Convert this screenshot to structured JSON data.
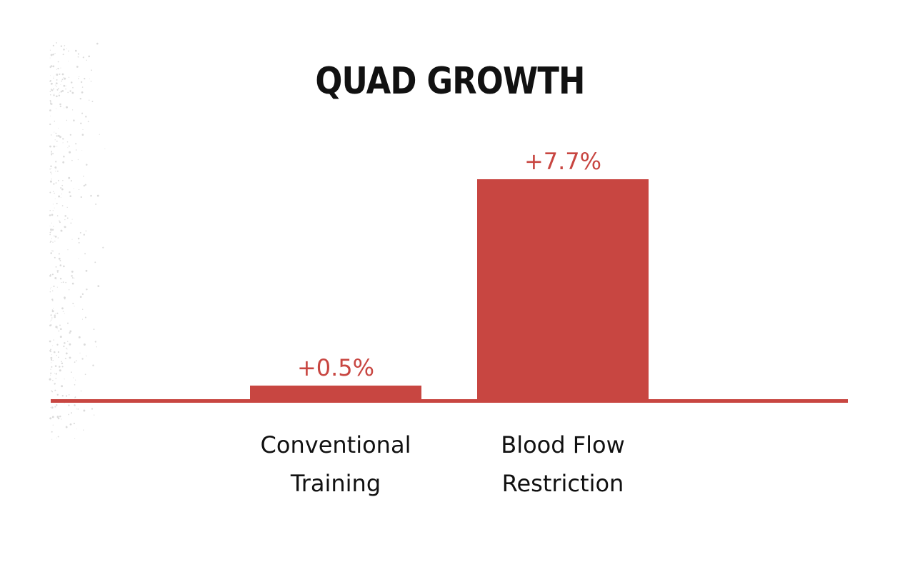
{
  "colors": {
    "bar": "#c84641",
    "axis": "#c84641",
    "value_text": "#c84641",
    "title_text": "#111111",
    "label_text": "#111111",
    "background": "#ffffff"
  },
  "chart_data": {
    "type": "bar",
    "title": "QUAD GROWTH",
    "xlabel": "",
    "ylabel": "",
    "categories": [
      [
        "Conventional",
        "Training"
      ],
      [
        "Blood Flow",
        "Restriction"
      ]
    ],
    "values": [
      0.5,
      7.7
    ],
    "value_labels": [
      "+0.5%",
      "+7.7%"
    ],
    "unit": "%",
    "ylim": [
      0,
      7.7
    ],
    "grid": false,
    "legend": "none"
  }
}
